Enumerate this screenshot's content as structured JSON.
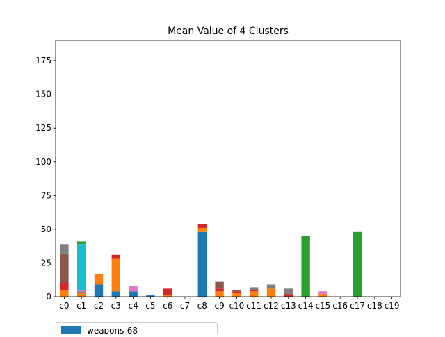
{
  "chart_data": {
    "type": "bar",
    "stacked": true,
    "title": "Mean Value of 4 Clusters",
    "xlabel": "",
    "ylabel": "",
    "ylim": [
      0,
      190
    ],
    "yticks": [
      0,
      25,
      50,
      75,
      100,
      125,
      150,
      175
    ],
    "grid": false,
    "legend_position": "bottom-left",
    "categories": [
      "c0",
      "c1",
      "c2",
      "c3",
      "c4",
      "c5",
      "c6",
      "c7",
      "c8",
      "c9",
      "c10",
      "c11",
      "c12",
      "c13",
      "c14",
      "c15",
      "c16",
      "c17",
      "c18",
      "c19"
    ],
    "series": [
      {
        "name": "weapons-68",
        "color": "#1f77b4",
        "values": [
          0,
          0,
          9,
          4,
          4,
          1,
          0,
          0,
          48,
          0,
          0,
          0,
          0,
          0,
          0,
          0,
          0,
          0,
          0,
          0
        ]
      },
      {
        "name": "",
        "color": "#ff7f0e",
        "values": [
          5,
          3,
          8,
          24,
          0,
          0,
          1,
          0,
          3,
          4,
          3,
          4,
          6,
          0,
          0,
          2,
          0,
          0,
          0,
          0
        ]
      },
      {
        "name": "",
        "color": "#d62728",
        "values": [
          5,
          0,
          0,
          3,
          0,
          0,
          5,
          0,
          3,
          2,
          1,
          1,
          0,
          2,
          0,
          0,
          0,
          0,
          0,
          0
        ]
      },
      {
        "name": "",
        "color": "#8c564b",
        "values": [
          22,
          0,
          0,
          0,
          0,
          0,
          0,
          0,
          0,
          5,
          1,
          0,
          0,
          0,
          0,
          0,
          0,
          0,
          0,
          0
        ]
      },
      {
        "name": "",
        "color": "#7f7f7f",
        "values": [
          7,
          1,
          0,
          0,
          0,
          0,
          0,
          0,
          0,
          0,
          0,
          2,
          3,
          4,
          0,
          0,
          0,
          0,
          0,
          0
        ]
      },
      {
        "name": "",
        "color": "#e377c2",
        "values": [
          0,
          1,
          0,
          0,
          4,
          0,
          0,
          0,
          0,
          0,
          0,
          0,
          0,
          0,
          0,
          2,
          0,
          0,
          0,
          0
        ]
      },
      {
        "name": "",
        "color": "#17becf",
        "values": [
          0,
          34,
          0,
          0,
          0,
          0,
          0,
          0,
          0,
          0,
          0,
          0,
          0,
          0,
          0,
          0,
          0,
          0,
          0,
          0
        ]
      },
      {
        "name": "",
        "color": "#2ca02c",
        "values": [
          0,
          2,
          0,
          0,
          0,
          0,
          0,
          0,
          0,
          0,
          0,
          0,
          0,
          0,
          45,
          0,
          0,
          48,
          0,
          0
        ]
      }
    ]
  },
  "legend": {
    "items": [
      {
        "label": "weapons-68",
        "color": "#1f77b4"
      }
    ]
  }
}
